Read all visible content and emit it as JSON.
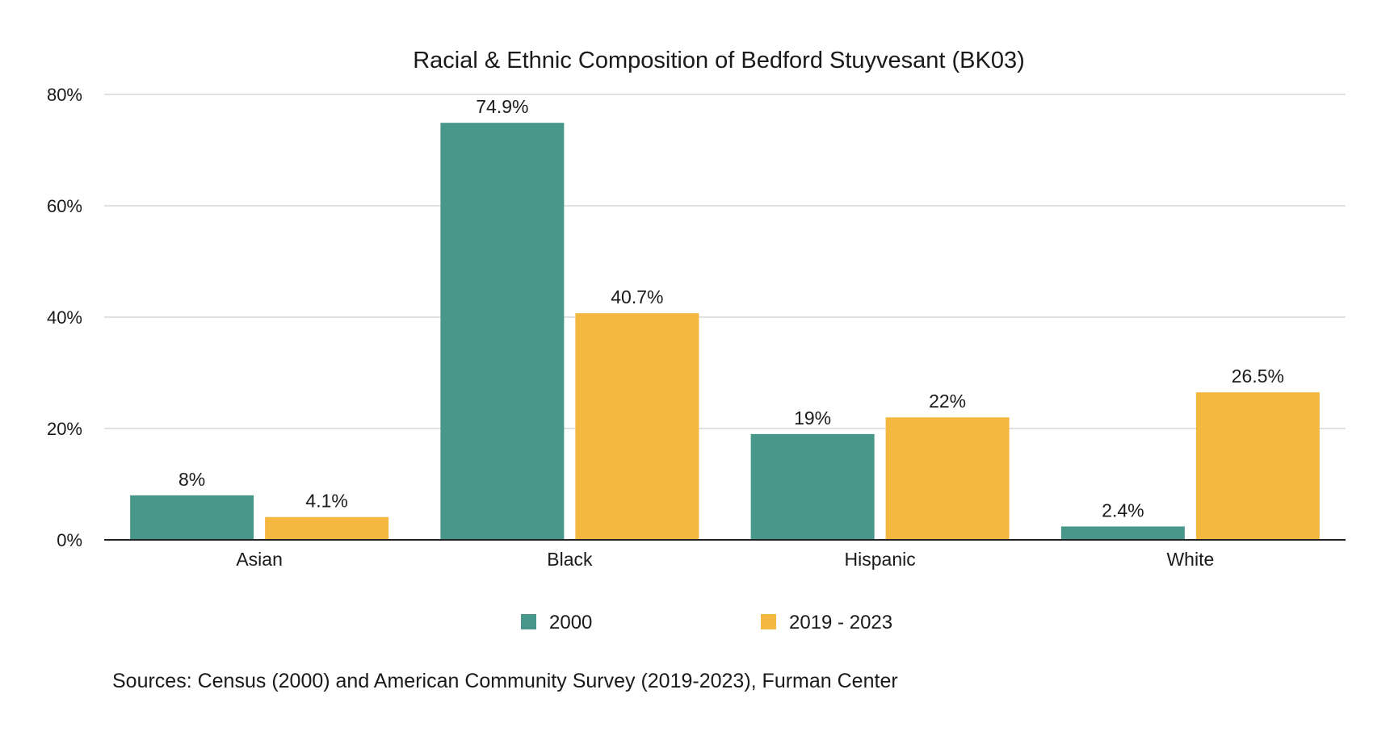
{
  "chart_data": {
    "type": "bar",
    "title": "Racial & Ethnic Composition of Bedford Stuyvesant (BK03)",
    "xlabel": "",
    "ylabel": "",
    "categories": [
      "Asian",
      "Black",
      "Hispanic",
      "White"
    ],
    "series": [
      {
        "name": "2000",
        "color": "#47988A",
        "values": [
          8,
          74.9,
          19,
          2.4
        ],
        "labels": [
          "8%",
          "74.9%",
          "19%",
          "2.4%"
        ]
      },
      {
        "name": "2019 - 2023",
        "color": "#F4B740",
        "values": [
          4.1,
          40.7,
          22,
          26.5
        ],
        "labels": [
          "4.1%",
          "40.7%",
          "22%",
          "26.5%"
        ]
      }
    ],
    "ylim": [
      0,
      80
    ],
    "yticks": [
      0,
      20,
      40,
      60,
      80
    ],
    "ytick_labels": [
      "0%",
      "20%",
      "40%",
      "60%",
      "80%"
    ],
    "grid": true,
    "legend_position": "bottom-center"
  },
  "source_note": "Sources: Census (2000) and American Community Survey (2019-2023), Furman Center"
}
